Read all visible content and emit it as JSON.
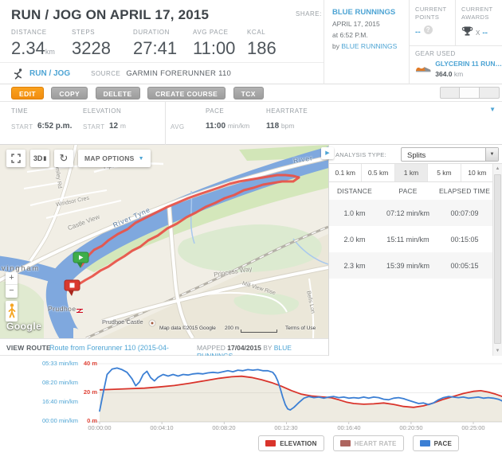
{
  "header": {
    "title": "RUN / JOG ON APRIL 17, 2015",
    "share_label": "SHARE:",
    "user": {
      "name": "BLUE RUNNINGS",
      "date": "APRIL 17, 2015",
      "time": "at 6:52 P.M.",
      "by_label": "by",
      "by_name": "BLUE RUNNINGS"
    },
    "stats": [
      {
        "label": "DISTANCE",
        "value": "2.34",
        "unit": "km"
      },
      {
        "label": "STEPS",
        "value": "3228",
        "unit": ""
      },
      {
        "label": "DURATION",
        "value": "27:41",
        "unit": ""
      },
      {
        "label": "AVG PACE",
        "value": "11:00",
        "unit": ""
      },
      {
        "label": "KCAL",
        "value": "186",
        "unit": ""
      }
    ],
    "points": {
      "label_line1": "CURRENT",
      "label_line2": "POINTS",
      "value": "--",
      "help": "?"
    },
    "awards": {
      "label_line1": "CURRENT",
      "label_line2": "AWARDS",
      "times": "X",
      "value": "--"
    },
    "gear": {
      "label": "GEAR USED",
      "name": "GLYCERIN 11 RUN…",
      "distance": "364.0",
      "unit": "km"
    }
  },
  "activity": {
    "type": "RUN / JOG",
    "source_label": "SOURCE",
    "source": "GARMIN FORERUNNER 110"
  },
  "toolbar": {
    "buttons": [
      "EDIT",
      "COPY",
      "DELETE",
      "CREATE COURSE",
      "TCX"
    ]
  },
  "summary": {
    "time_label": "TIME",
    "elevation_label": "ELEVATION",
    "pace_label": "PACE",
    "heartrate_label": "HEARTRATE",
    "start_label": "START",
    "avg_label": "AVG",
    "time_start": "6:52 p.m.",
    "elevation_start": "12",
    "elevation_unit": "m",
    "pace_value": "11:00",
    "pace_unit": "min/km",
    "heartrate_value": "118",
    "heartrate_unit": "bpm"
  },
  "map": {
    "buttons": {
      "threed": "3D",
      "options": "MAP OPTIONS"
    },
    "zoom_in": "+",
    "zoom_out": "−",
    "labels": {
      "horsley": "Horsley Rd",
      "windsor": "Windsor Cres",
      "piper": "Piper Rd",
      "castle_view": "Castle View",
      "river_tyne": "River Tyne",
      "river_short": "River",
      "princess": "Princess Way",
      "mill_view": "Mill View Rise",
      "bells": "Bells Lon",
      "ovingham": "vingham",
      "prudhoe": "Prudhoe",
      "prudhoe_castle": "Prudhoe Castle"
    },
    "attribution": {
      "copyright": "Map data ©2015 Google",
      "scale": "200 m",
      "terms": "Terms of Use",
      "logo": "Google"
    }
  },
  "analysis": {
    "label": "ANALYSIS TYPE:",
    "selected": "Splits",
    "tabs": [
      "0.1 km",
      "0.5 km",
      "1 km",
      "5 km",
      "10 km"
    ],
    "active_tab": "1 km",
    "table": {
      "headers": [
        "DISTANCE",
        "PACE",
        "ELAPSED TIME"
      ],
      "rows": [
        {
          "distance": "1.0 km",
          "pace": "07:12 min/km",
          "elapsed": "00:07:09"
        },
        {
          "distance": "2.0 km",
          "pace": "15:11 min/km",
          "elapsed": "00:15:05"
        },
        {
          "distance": "2.3 km",
          "pace": "15:39 min/km",
          "elapsed": "00:05:15"
        }
      ]
    }
  },
  "view_route": {
    "label": "VIEW ROUTE",
    "route_link": "Route from Forerunner 110 (2015-04-",
    "mapped_label": "MAPPED",
    "mapped_date": "17/04/2015",
    "by_label": "BY",
    "by_link": "BLUE RUNNINGS"
  },
  "chart_data": {
    "type": "line",
    "x_axis": {
      "ticks": [
        "00:00:00",
        "00:04:10",
        "00:08:20",
        "00:12:30",
        "00:16:40",
        "00:20:50",
        "00:25:00"
      ],
      "tick_seconds": [
        0,
        250,
        500,
        750,
        1000,
        1250,
        1500
      ],
      "range_seconds": [
        0,
        1661
      ]
    },
    "pace_axis": {
      "ticks": [
        "05:33 min/km",
        "08:20 min/km",
        "16:40 min/km",
        "00:00 min/km"
      ],
      "max_speed_kmh": 10.8
    },
    "elevation_axis": {
      "ticks": [
        "40 m",
        "20 m",
        "0 m"
      ],
      "max_m": 40
    },
    "legend": [
      {
        "label": "ELEVATION",
        "color": "#d9342b",
        "enabled": true
      },
      {
        "label": "HEART RATE",
        "color": "#93312a",
        "enabled": false
      },
      {
        "label": "PACE",
        "color": "#3b7fd4",
        "enabled": true
      }
    ],
    "series": [
      {
        "name": "ELEVATION",
        "unit": "m",
        "color": "#d9342b",
        "points": [
          [
            0,
            22
          ],
          [
            60,
            22.4
          ],
          [
            120,
            22.8
          ],
          [
            180,
            23.2
          ],
          [
            240,
            24
          ],
          [
            300,
            25
          ],
          [
            360,
            26.5
          ],
          [
            420,
            28.2
          ],
          [
            480,
            30
          ],
          [
            530,
            31
          ],
          [
            570,
            31.4
          ],
          [
            610,
            30.5
          ],
          [
            650,
            29
          ],
          [
            690,
            27
          ],
          [
            730,
            24.5
          ],
          [
            770,
            21.5
          ],
          [
            810,
            19
          ],
          [
            850,
            17.8
          ],
          [
            890,
            17.2
          ],
          [
            930,
            16.6
          ],
          [
            960,
            15.2
          ],
          [
            990,
            13.6
          ],
          [
            1020,
            12.6
          ],
          [
            1060,
            12.1
          ],
          [
            1100,
            12.4
          ],
          [
            1140,
            13
          ],
          [
            1180,
            12
          ],
          [
            1220,
            10.6
          ],
          [
            1260,
            10
          ],
          [
            1300,
            11
          ],
          [
            1340,
            13
          ],
          [
            1380,
            15.5
          ],
          [
            1420,
            17.5
          ],
          [
            1460,
            19.5
          ],
          [
            1500,
            21
          ],
          [
            1530,
            21.4
          ],
          [
            1560,
            20.5
          ],
          [
            1590,
            19
          ],
          [
            1620,
            17.2
          ],
          [
            1645,
            15.5
          ],
          [
            1661,
            14.6
          ]
        ]
      },
      {
        "name": "PACE",
        "unit": "km/h (axis labeled as min/km pace)",
        "color": "#3b7fd4",
        "points": [
          [
            0,
            2
          ],
          [
            15,
            5.5
          ],
          [
            30,
            8.8
          ],
          [
            50,
            9.8
          ],
          [
            70,
            10
          ],
          [
            90,
            9.7
          ],
          [
            110,
            9.2
          ],
          [
            130,
            8
          ],
          [
            145,
            6.7
          ],
          [
            160,
            7.4
          ],
          [
            175,
            8.8
          ],
          [
            190,
            9.4
          ],
          [
            205,
            8.2
          ],
          [
            220,
            7.6
          ],
          [
            235,
            8.3
          ],
          [
            255,
            8.8
          ],
          [
            275,
            8.5
          ],
          [
            295,
            8.8
          ],
          [
            315,
            8.5
          ],
          [
            335,
            8.8
          ],
          [
            355,
            8.7
          ],
          [
            375,
            8.9
          ],
          [
            395,
            9
          ],
          [
            415,
            8.9
          ],
          [
            435,
            9.1
          ],
          [
            455,
            9.2
          ],
          [
            475,
            9.1
          ],
          [
            495,
            9.3
          ],
          [
            515,
            9.5
          ],
          [
            535,
            9.3
          ],
          [
            555,
            9.6
          ],
          [
            575,
            9.5
          ],
          [
            595,
            9.7
          ],
          [
            615,
            9.6
          ],
          [
            635,
            9.7
          ],
          [
            655,
            9.5
          ],
          [
            675,
            9.5
          ],
          [
            695,
            9.2
          ],
          [
            705,
            8.6
          ],
          [
            715,
            7.6
          ],
          [
            725,
            6.2
          ],
          [
            735,
            4.6
          ],
          [
            745,
            3.2
          ],
          [
            755,
            2.4
          ],
          [
            765,
            2.2
          ],
          [
            780,
            2.7
          ],
          [
            800,
            3.6
          ],
          [
            820,
            4.4
          ],
          [
            840,
            4.7
          ],
          [
            860,
            4.5
          ],
          [
            880,
            4.6
          ],
          [
            900,
            4.4
          ],
          [
            920,
            4.6
          ],
          [
            940,
            4.7
          ],
          [
            960,
            4.5
          ],
          [
            980,
            4.6
          ],
          [
            1000,
            4.4
          ],
          [
            1020,
            4.5
          ],
          [
            1040,
            4.4
          ],
          [
            1060,
            4.6
          ],
          [
            1080,
            4.4
          ],
          [
            1100,
            4.6
          ],
          [
            1120,
            4.5
          ],
          [
            1140,
            4.2
          ],
          [
            1160,
            4.1
          ],
          [
            1180,
            4.4
          ],
          [
            1200,
            4.5
          ],
          [
            1220,
            4.3
          ],
          [
            1240,
            4
          ],
          [
            1260,
            3.7
          ],
          [
            1280,
            3.4
          ],
          [
            1300,
            3.5
          ],
          [
            1320,
            3.2
          ],
          [
            1340,
            3.5
          ],
          [
            1360,
            4.1
          ],
          [
            1380,
            4.5
          ],
          [
            1400,
            4.7
          ],
          [
            1420,
            4.6
          ],
          [
            1440,
            4.5
          ],
          [
            1460,
            4.6
          ],
          [
            1480,
            4.4
          ],
          [
            1500,
            4.5
          ],
          [
            1520,
            4.6
          ],
          [
            1540,
            4.4
          ],
          [
            1560,
            4.5
          ],
          [
            1580,
            4.4
          ],
          [
            1600,
            4.2
          ],
          [
            1615,
            3.9
          ],
          [
            1630,
            3
          ],
          [
            1645,
            2.3
          ],
          [
            1661,
            1.8
          ]
        ]
      },
      {
        "name": "HEART RATE",
        "unit": "bpm",
        "color": "#93312a",
        "points": [],
        "note": "series toggled off in legend; avg shown in summary is 118 bpm"
      }
    ]
  }
}
